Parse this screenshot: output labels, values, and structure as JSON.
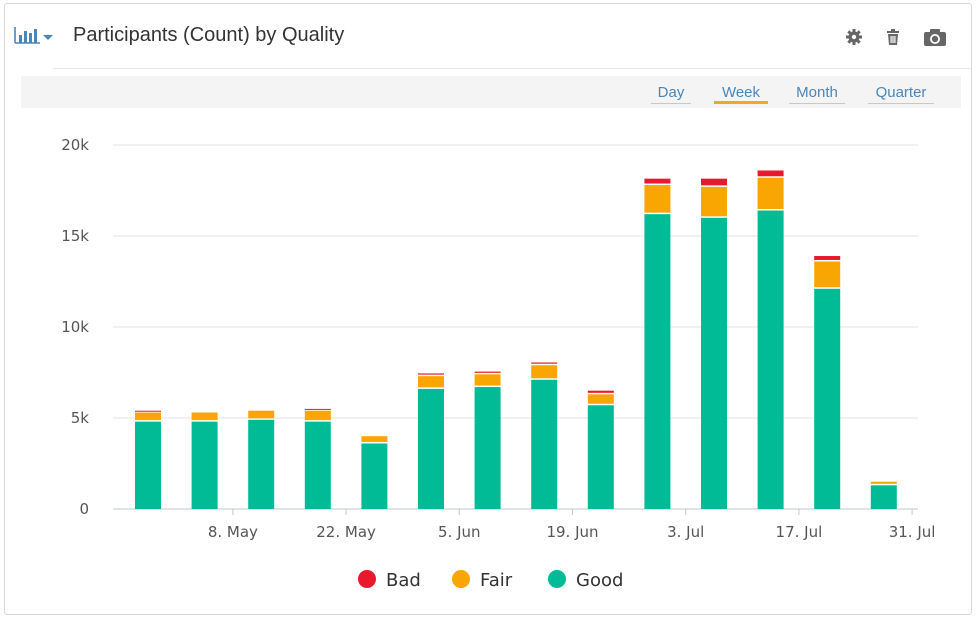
{
  "header": {
    "title": "Participants (Count) by Quality",
    "chart_type_icon": "bar-chart-icon",
    "dropdown_icon": "caret-down-icon",
    "tools": [
      "settings-gear-icon",
      "trash-icon",
      "camera-icon"
    ]
  },
  "period_tabs": [
    {
      "label": "Day",
      "active": false
    },
    {
      "label": "Week",
      "active": true
    },
    {
      "label": "Month",
      "active": false
    },
    {
      "label": "Quarter",
      "active": false
    }
  ],
  "colors": {
    "accent": "#f5a623",
    "link": "#4a86b8",
    "bad": "#e8192c",
    "fair": "#f9a602",
    "good": "#00bb96"
  },
  "chart_data": {
    "type": "bar",
    "stacked": true,
    "title": "",
    "xlabel": "",
    "ylabel": "",
    "ylim": [
      0,
      20000
    ],
    "yticks": [
      0,
      5000,
      10000,
      15000,
      20000
    ],
    "ytick_labels": [
      "0",
      "5k",
      "10k",
      "15k",
      "20k"
    ],
    "x_tick_labels": [
      "8. May",
      "22. May",
      "5. Jun",
      "19. Jun",
      "3. Jul",
      "17. Jul",
      "31. Jul"
    ],
    "x_tick_at_bar": [
      1,
      3,
      5,
      7,
      9,
      11,
      13
    ],
    "bar_count": 14,
    "grid": true,
    "legend_position": "bottom",
    "series": [
      {
        "name": "Good",
        "color": "#00bb96",
        "values": [
          4800,
          4800,
          4900,
          4800,
          3600,
          6600,
          6700,
          7100,
          5700,
          16200,
          16000,
          16400,
          12100,
          1300
        ]
      },
      {
        "name": "Fair",
        "color": "#f9a602",
        "values": [
          500,
          500,
          500,
          600,
          400,
          700,
          700,
          800,
          600,
          1600,
          1700,
          1800,
          1500,
          200
        ]
      },
      {
        "name": "Bad",
        "color": "#e8192c",
        "values": [
          100,
          0,
          0,
          100,
          0,
          150,
          150,
          150,
          200,
          350,
          450,
          400,
          300,
          0
        ]
      }
    ],
    "legend": [
      "Bad",
      "Fair",
      "Good"
    ]
  }
}
